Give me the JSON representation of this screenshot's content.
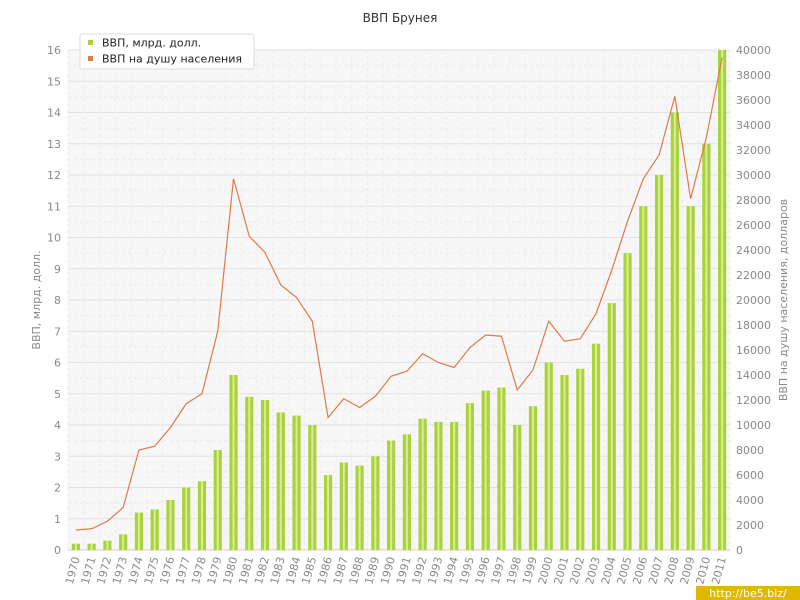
{
  "chart_data": {
    "type": "bar+line",
    "title": "ВВП Брунея",
    "categories": [
      "1970",
      "1971",
      "1972",
      "1973",
      "1974",
      "1975",
      "1976",
      "1977",
      "1978",
      "1979",
      "1980",
      "1981",
      "1982",
      "1983",
      "1984",
      "1985",
      "1986",
      "1987",
      "1988",
      "1989",
      "1990",
      "1991",
      "1992",
      "1993",
      "1994",
      "1995",
      "1996",
      "1997",
      "1998",
      "1999",
      "2000",
      "2001",
      "2002",
      "2003",
      "2004",
      "2005",
      "2006",
      "2007",
      "2008",
      "2009",
      "2010",
      "2011"
    ],
    "series": [
      {
        "name": "ВВП, млрд. долл.",
        "type": "bar",
        "axis": "left",
        "color": "#a8d33a",
        "values": [
          0.2,
          0.2,
          0.3,
          0.5,
          1.2,
          1.3,
          1.6,
          2.0,
          2.2,
          3.2,
          5.6,
          4.9,
          4.8,
          4.4,
          4.3,
          4.0,
          2.4,
          2.8,
          2.7,
          3.0,
          3.5,
          3.7,
          4.2,
          4.1,
          4.1,
          4.7,
          5.1,
          5.2,
          4.0,
          4.6,
          6.0,
          5.6,
          5.8,
          6.6,
          7.9,
          9.5,
          11.0,
          12.0,
          14.0,
          11.0,
          13.0,
          16.0
        ]
      },
      {
        "name": "ВВП на душу населения",
        "type": "line",
        "axis": "right",
        "color": "#e07a4a",
        "values": [
          1600,
          1700,
          2300,
          3400,
          8000,
          8300,
          9800,
          11700,
          12500,
          17500,
          29700,
          25100,
          23800,
          21200,
          20200,
          18300,
          10600,
          12100,
          11400,
          12300,
          13900,
          14300,
          15700,
          15000,
          14600,
          16200,
          17200,
          17100,
          12800,
          14400,
          18300,
          16700,
          16900,
          18900,
          22400,
          26300,
          29700,
          31600,
          36300,
          28100,
          33000,
          39400
        ]
      }
    ],
    "ylabel_left": "ВВП, млрд. долл.",
    "ylabel_right": "ВВП на душу населения, долларов",
    "ylim_left": [
      0,
      16
    ],
    "ylim_right": [
      0,
      40000
    ],
    "yticks_left": [
      "0",
      "1",
      "2",
      "3",
      "4",
      "5",
      "6",
      "7",
      "8",
      "9",
      "10",
      "11",
      "12",
      "13",
      "14",
      "15",
      "16"
    ],
    "yticks_right": [
      "0",
      "2000",
      "4000",
      "6000",
      "8000",
      "10000",
      "12000",
      "14000",
      "16000",
      "18000",
      "20000",
      "22000",
      "24000",
      "26000",
      "28000",
      "30000",
      "32000",
      "34000",
      "36000",
      "38000",
      "40000"
    ],
    "grid": true,
    "legend_position": "top-left"
  },
  "watermark": "http://be5.biz/"
}
